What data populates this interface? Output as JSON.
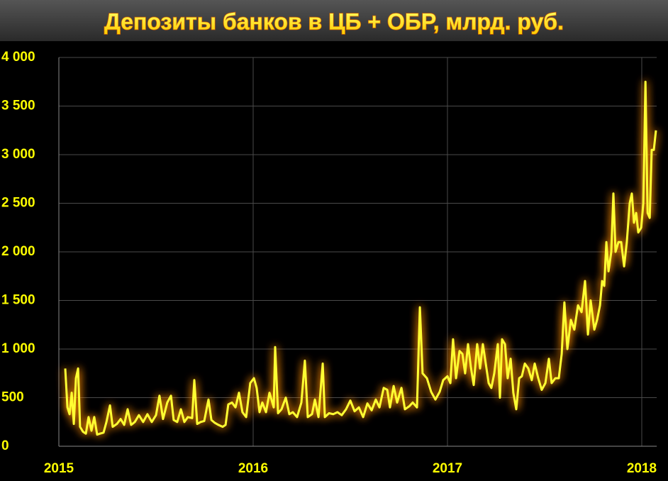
{
  "chart_data": {
    "type": "line",
    "title": "Депозиты банков в ЦБ + ОБР, млрд. руб.",
    "color": "#ffff33",
    "grid": true,
    "xlim": [
      2015,
      2018.077
    ],
    "xticks": [
      2015,
      2016,
      2017,
      2018
    ],
    "ylim": [
      0,
      4000
    ],
    "yticks": [
      0,
      500,
      {
        "value": 1000,
        "label": "1 000"
      },
      {
        "value": 1500,
        "label": "1 500"
      },
      {
        "value": 2000,
        "label": "2 000"
      },
      {
        "value": 2500,
        "label": "2 500"
      },
      {
        "value": 3000,
        "label": "3 000"
      },
      {
        "value": 3500,
        "label": "3 500"
      },
      {
        "value": 4000,
        "label": "4 000"
      }
    ],
    "x": [
      2015.033,
      2015.044,
      2015.055,
      2015.066,
      2015.077,
      2015.088,
      2015.099,
      2015.109,
      2015.124,
      2015.139,
      2015.153,
      2015.168,
      2015.182,
      2015.197,
      2015.212,
      2015.23,
      2015.245,
      2015.263,
      2015.277,
      2015.299,
      2015.318,
      2015.336,
      2015.354,
      2015.372,
      2015.391,
      2015.412,
      2015.434,
      2015.456,
      2015.478,
      2015.5,
      2015.518,
      2015.536,
      2015.558,
      2015.577,
      2015.591,
      2015.609,
      2015.628,
      2015.646,
      2015.664,
      2015.686,
      2015.697,
      2015.712,
      2015.73,
      2015.748,
      2015.77,
      2015.785,
      2015.803,
      2015.821,
      2015.843,
      2015.858,
      2015.872,
      2015.891,
      2015.909,
      2015.927,
      2015.945,
      2015.964,
      2015.985,
      2016.004,
      2016.018,
      2016.033,
      2016.047,
      2016.066,
      2016.084,
      2016.106,
      2016.113,
      2016.128,
      2016.146,
      2016.168,
      2016.186,
      2016.204,
      2016.226,
      2016.248,
      2016.266,
      2016.281,
      2016.303,
      2016.318,
      2016.336,
      2016.358,
      2016.369,
      2016.391,
      2016.412,
      2016.434,
      2016.456,
      2016.478,
      2016.5,
      2016.522,
      2016.544,
      2016.566,
      2016.588,
      2016.61,
      2016.631,
      2016.65,
      2016.672,
      2016.69,
      2016.704,
      2016.723,
      2016.741,
      2016.763,
      2016.781,
      2016.803,
      2016.821,
      2016.843,
      2016.858,
      2016.872,
      2016.894,
      2016.916,
      2016.938,
      2016.96,
      2016.978,
      2017.0,
      2017.015,
      2017.029,
      2017.044,
      2017.062,
      2017.077,
      2017.091,
      2017.106,
      2017.12,
      2017.135,
      2017.153,
      2017.168,
      2017.182,
      2017.197,
      2017.212,
      2017.226,
      2017.241,
      2017.259,
      2017.27,
      2017.281,
      2017.296,
      2017.31,
      2017.325,
      2017.339,
      2017.354,
      2017.369,
      2017.383,
      2017.398,
      2017.416,
      2017.434,
      2017.449,
      2017.467,
      2017.485,
      2017.504,
      2017.522,
      2017.536,
      2017.555,
      2017.573,
      2017.588,
      2017.602,
      2017.617,
      2017.635,
      2017.653,
      2017.672,
      2017.69,
      2017.708,
      2017.723,
      2017.737,
      2017.756,
      2017.77,
      2017.785,
      2017.796,
      2017.807,
      2017.818,
      2017.829,
      2017.843,
      2017.854,
      2017.865,
      2017.88,
      2017.894,
      2017.909,
      2017.923,
      2017.938,
      2017.949,
      2017.96,
      2017.971,
      2017.982,
      2017.997,
      2018.008,
      2018.019,
      2018.03,
      2018.041,
      2018.051,
      2018.062,
      2018.073
    ],
    "values": [
      800,
      400,
      330,
      550,
      230,
      700,
      800,
      200,
      150,
      130,
      300,
      160,
      300,
      120,
      130,
      140,
      250,
      420,
      200,
      230,
      280,
      220,
      380,
      220,
      250,
      320,
      250,
      330,
      250,
      320,
      520,
      280,
      450,
      520,
      270,
      250,
      380,
      250,
      300,
      290,
      680,
      230,
      250,
      260,
      480,
      270,
      240,
      220,
      200,
      220,
      430,
      450,
      400,
      550,
      350,
      300,
      650,
      700,
      600,
      350,
      450,
      350,
      550,
      400,
      1020,
      340,
      380,
      500,
      330,
      350,
      300,
      450,
      880,
      300,
      330,
      480,
      300,
      850,
      300,
      340,
      330,
      350,
      320,
      380,
      470,
      360,
      400,
      300,
      440,
      370,
      480,
      400,
      600,
      580,
      400,
      620,
      450,
      600,
      380,
      410,
      450,
      400,
      1430,
      750,
      700,
      560,
      480,
      560,
      680,
      720,
      650,
      1100,
      700,
      980,
      950,
      750,
      1050,
      820,
      630,
      1050,
      800,
      1050,
      850,
      650,
      600,
      750,
      1050,
      500,
      1100,
      1050,
      700,
      900,
      550,
      380,
      700,
      720,
      850,
      800,
      680,
      850,
      700,
      580,
      650,
      900,
      650,
      700,
      700,
      950,
      1480,
      1000,
      1300,
      1200,
      1450,
      1380,
      1700,
      1150,
      1500,
      1200,
      1300,
      1450,
      1700,
      1650,
      2100,
      1800,
      2000,
      2600,
      2000,
      2100,
      2100,
      1850,
      2100,
      2500,
      2600,
      2300,
      2400,
      2200,
      2250,
      2500,
      3750,
      2400,
      2350,
      3050,
      3050,
      3250
    ]
  }
}
